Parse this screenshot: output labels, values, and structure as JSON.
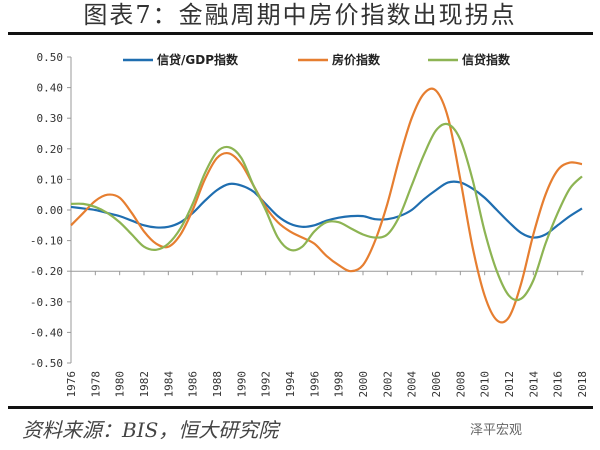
{
  "title": "图表7：金融周期中房价指数出现拐点",
  "source": "资料来源：BIS，恒大研究院",
  "watermark": "泽平宏观",
  "chart_data": {
    "type": "line",
    "title": "图表7：金融周期中房价指数出现拐点",
    "xlabel": "",
    "ylabel": "",
    "ylim": [
      -0.5,
      0.5
    ],
    "xlim": [
      1976,
      2018
    ],
    "yticks": [
      "0.50",
      "0.40",
      "0.30",
      "0.20",
      "0.10",
      "0.00",
      "-0.10",
      "-0.20",
      "-0.30",
      "-0.40",
      "-0.50"
    ],
    "xticks": [
      "1976",
      "1978",
      "1980",
      "1982",
      "1984",
      "1986",
      "1988",
      "1990",
      "1992",
      "1994",
      "1996",
      "1998",
      "2000",
      "2002",
      "2004",
      "2006",
      "2008",
      "2010",
      "2012",
      "2014",
      "2016",
      "2018"
    ],
    "x_axis_crosses_at": -0.2,
    "grid": false,
    "legend": "top",
    "x": [
      1976,
      1977,
      1978,
      1979,
      1980,
      1981,
      1982,
      1983,
      1984,
      1985,
      1986,
      1987,
      1988,
      1989,
      1990,
      1991,
      1992,
      1993,
      1994,
      1995,
      1996,
      1997,
      1998,
      1999,
      2000,
      2001,
      2002,
      2003,
      2004,
      2005,
      2006,
      2007,
      2008,
      2009,
      2010,
      2011,
      2012,
      2013,
      2014,
      2015,
      2016,
      2017,
      2018
    ],
    "series": [
      {
        "name": "信贷/GDP指数",
        "color": "#1f6eb0",
        "values": [
          0.01,
          0.005,
          0.0,
          -0.01,
          -0.02,
          -0.035,
          -0.05,
          -0.057,
          -0.055,
          -0.04,
          -0.01,
          0.03,
          0.065,
          0.085,
          0.08,
          0.06,
          0.02,
          -0.02,
          -0.045,
          -0.055,
          -0.05,
          -0.035,
          -0.025,
          -0.02,
          -0.02,
          -0.03,
          -0.03,
          -0.02,
          0.0,
          0.035,
          0.065,
          0.09,
          0.09,
          0.07,
          0.04,
          0.0,
          -0.04,
          -0.075,
          -0.09,
          -0.08,
          -0.05,
          -0.02,
          0.005
        ]
      },
      {
        "name": "房价指数",
        "color": "#e67e30",
        "values": [
          -0.05,
          -0.01,
          0.03,
          0.05,
          0.04,
          -0.01,
          -0.07,
          -0.11,
          -0.12,
          -0.08,
          0.0,
          0.1,
          0.17,
          0.185,
          0.15,
          0.08,
          0.01,
          -0.04,
          -0.07,
          -0.09,
          -0.11,
          -0.15,
          -0.18,
          -0.2,
          -0.18,
          -0.1,
          0.02,
          0.17,
          0.3,
          0.38,
          0.39,
          0.3,
          0.1,
          -0.12,
          -0.28,
          -0.36,
          -0.35,
          -0.24,
          -0.08,
          0.05,
          0.13,
          0.155,
          0.15
        ]
      },
      {
        "name": "信贷指数",
        "color": "#8db453",
        "values": [
          0.02,
          0.02,
          0.01,
          -0.01,
          -0.04,
          -0.08,
          -0.12,
          -0.13,
          -0.11,
          -0.06,
          0.02,
          0.12,
          0.19,
          0.205,
          0.17,
          0.08,
          0.0,
          -0.09,
          -0.13,
          -0.12,
          -0.07,
          -0.04,
          -0.04,
          -0.06,
          -0.08,
          -0.09,
          -0.08,
          -0.02,
          0.08,
          0.18,
          0.26,
          0.28,
          0.23,
          0.1,
          -0.07,
          -0.2,
          -0.28,
          -0.29,
          -0.23,
          -0.11,
          -0.01,
          0.07,
          0.11
        ]
      }
    ]
  }
}
